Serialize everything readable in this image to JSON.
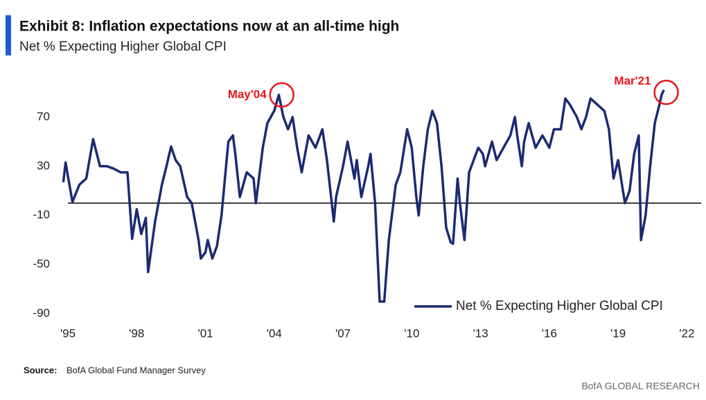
{
  "chart_data": {
    "type": "line",
    "title": "Exhibit 8: Inflation expectations now at an all-time high",
    "subtitle": "Net % Expecting Higher Global CPI",
    "source_label": "Source:",
    "source": "BofA Global Fund Manager Survey",
    "branding": "BofA GLOBAL RESEARCH",
    "x": [
      1994.8,
      1994.9,
      1995.0,
      1995.2,
      1995.5,
      1995.8,
      1996.1,
      1996.4,
      1996.7,
      1997.0,
      1997.3,
      1997.6,
      1997.8,
      1998.0,
      1998.2,
      1998.4,
      1998.5,
      1998.8,
      1999.1,
      1999.3,
      1999.5,
      1999.7,
      1999.9,
      2000.2,
      2000.4,
      2000.7,
      2000.8,
      2001.0,
      2001.1,
      2001.3,
      2001.5,
      2001.7,
      2002.0,
      2002.2,
      2002.3,
      2002.5,
      2002.8,
      2003.1,
      2003.2,
      2003.5,
      2003.7,
      2004.0,
      2004.2,
      2004.4,
      2004.6,
      2004.8,
      2005.0,
      2005.2,
      2005.5,
      2005.8,
      2006.1,
      2006.3,
      2006.6,
      2006.7,
      2007.0,
      2007.2,
      2007.5,
      2007.6,
      2007.8,
      2008.1,
      2008.2,
      2008.4,
      2008.6,
      2008.8,
      2009.0,
      2009.3,
      2009.5,
      2009.8,
      2010.0,
      2010.2,
      2010.3,
      2010.5,
      2010.7,
      2010.9,
      2011.1,
      2011.3,
      2011.5,
      2011.7,
      2011.8,
      2012.0,
      2012.1,
      2012.3,
      2012.5,
      2012.6,
      2012.9,
      2013.1,
      2013.2,
      2013.5,
      2013.7,
      2014.0,
      2014.3,
      2014.5,
      2014.6,
      2014.8,
      2014.9,
      2015.1,
      2015.4,
      2015.7,
      2016.0,
      2016.2,
      2016.5,
      2016.7,
      2016.9,
      2017.2,
      2017.4,
      2017.6,
      2017.8,
      2018.1,
      2018.4,
      2018.6,
      2018.8,
      2019.0,
      2019.3,
      2019.5,
      2019.7,
      2019.9,
      2020.0,
      2020.2,
      2020.4,
      2020.6,
      2020.8,
      2020.9,
      2021.0
    ],
    "series": [
      {
        "name": "Net % Expecting Higher Global CPI",
        "color": "#1b2a72",
        "values": [
          17,
          33,
          22,
          1,
          15,
          20,
          52,
          30,
          30,
          28,
          25,
          25,
          -29,
          -5,
          -25,
          -12,
          -56,
          -15,
          15,
          30,
          46,
          35,
          30,
          5,
          0,
          -30,
          -45,
          -40,
          -30,
          -45,
          -35,
          -10,
          50,
          55,
          40,
          5,
          25,
          20,
          0,
          45,
          65,
          75,
          88,
          70,
          60,
          70,
          45,
          25,
          55,
          45,
          60,
          35,
          -15,
          5,
          30,
          50,
          20,
          35,
          5,
          30,
          40,
          0,
          -80,
          -80,
          -30,
          15,
          25,
          60,
          45,
          5,
          -10,
          30,
          60,
          75,
          65,
          30,
          -20,
          -32,
          -33,
          20,
          0,
          -30,
          25,
          30,
          45,
          40,
          30,
          50,
          35,
          45,
          55,
          70,
          55,
          30,
          50,
          65,
          45,
          55,
          45,
          60,
          60,
          85,
          80,
          70,
          60,
          70,
          85,
          80,
          75,
          60,
          20,
          35,
          0,
          10,
          40,
          55,
          -30,
          -10,
          30,
          65,
          80,
          88,
          92
        ]
      }
    ],
    "annotations": [
      {
        "text": "May'04",
        "x": 2004.33,
        "y": 88
      },
      {
        "text": "Mar'21",
        "x": 2021.1,
        "y": 90
      }
    ],
    "annotation_color": "#e8141b",
    "xlim": [
      1994.8,
      2022.2
    ],
    "ylim": [
      -90,
      95
    ],
    "yticks": [
      -90,
      -50,
      -10,
      30,
      70
    ],
    "xticks": [
      {
        "value": 1995,
        "label": "'95"
      },
      {
        "value": 1998,
        "label": "'98"
      },
      {
        "value": 2001,
        "label": "'01"
      },
      {
        "value": 2004,
        "label": "'04"
      },
      {
        "value": 2007,
        "label": "'07"
      },
      {
        "value": 2010,
        "label": "'10"
      },
      {
        "value": 2013,
        "label": "'13"
      },
      {
        "value": 2016,
        "label": "'16"
      },
      {
        "value": 2019,
        "label": "'19"
      },
      {
        "value": 2022,
        "label": "'22"
      }
    ],
    "grid": false,
    "legend": "lower right"
  }
}
